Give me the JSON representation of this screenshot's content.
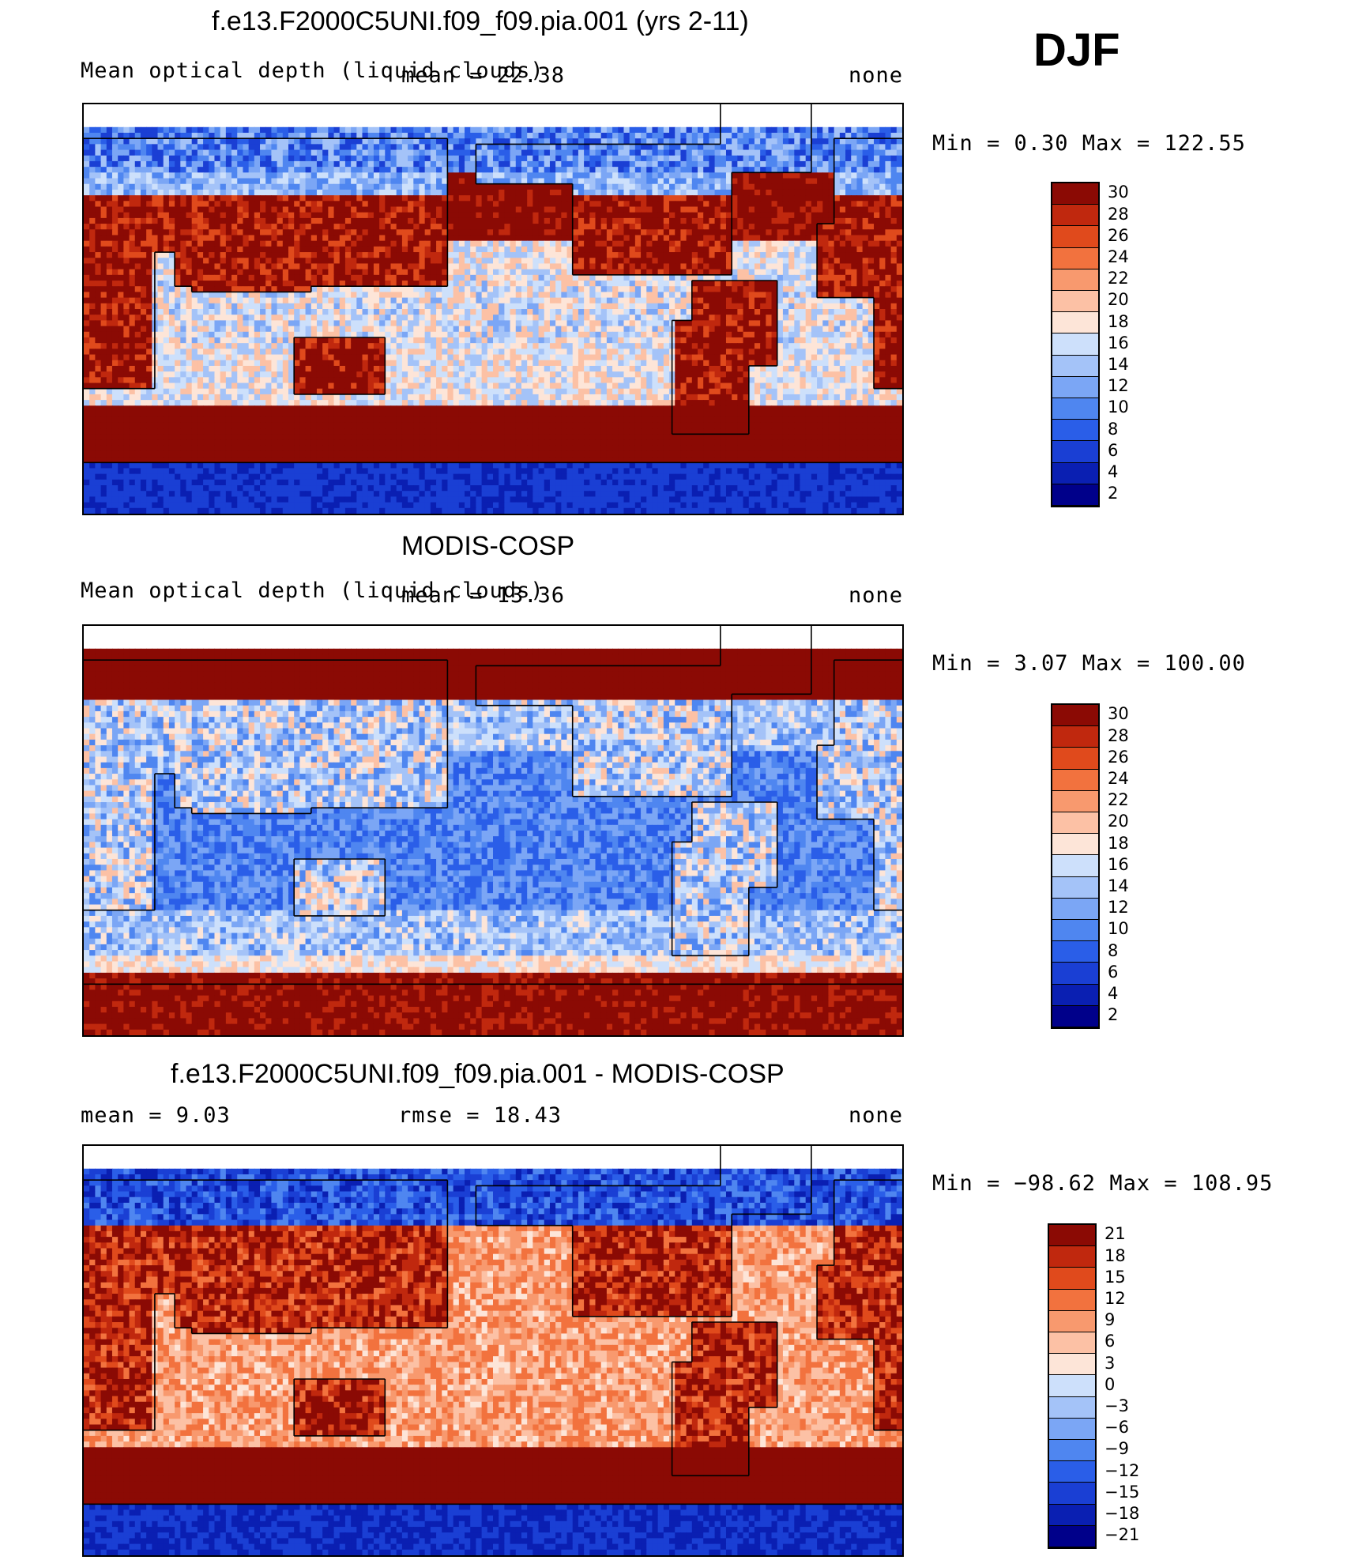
{
  "season": "DJF",
  "colors": {
    "levels_abs": [
      "#00008a",
      "#0a1fb2",
      "#1a3fd4",
      "#2a5ee8",
      "#4f86f0",
      "#7ba6f5",
      "#a4c3f8",
      "#cde0fb",
      "#fde5d8",
      "#fcc1a5",
      "#f8996e",
      "#f2723e",
      "#e04a1c",
      "#c0280e",
      "#8b0a04"
    ],
    "levels_diff": [
      "#00008a",
      "#0a1fb2",
      "#1a3fd4",
      "#2a5ee8",
      "#4f86f0",
      "#7ba6f5",
      "#a4c3f8",
      "#cde0fb",
      "#fde5d8",
      "#fcc1a5",
      "#f8996e",
      "#f2723e",
      "#e04a1c",
      "#c0280e",
      "#8b0a04"
    ]
  },
  "panels": [
    {
      "title": "f.e13.F2000C5UNI.f09_f09.pia.001 (yrs 2-11)",
      "subtitle_left": "Mean optical depth (liquid clouds)",
      "mean_label": "mean = 22.38",
      "units": "none",
      "minmax": "Min =    0.30 Max = 122.55",
      "colorbar_labels": [
        "30",
        "28",
        "26",
        "24",
        "22",
        "20",
        "18",
        "16",
        "14",
        "12",
        "10",
        "8",
        "6",
        "4",
        "2"
      ]
    },
    {
      "title": "MODIS-COSP",
      "subtitle_left": "Mean optical depth (liquid clouds)",
      "mean_label": "mean = 13.36",
      "units": "none",
      "minmax": "Min =    3.07 Max = 100.00",
      "colorbar_labels": [
        "30",
        "28",
        "26",
        "24",
        "22",
        "20",
        "18",
        "16",
        "14",
        "12",
        "10",
        "8",
        "6",
        "4",
        "2"
      ]
    },
    {
      "title": "f.e13.F2000C5UNI.f09_f09.pia.001 - MODIS-COSP",
      "mean_left": "mean =    9.03",
      "rmse": "rmse =   18.43",
      "units": "none",
      "minmax": "Min = −98.62 Max = 108.95",
      "colorbar_labels": [
        "21",
        "18",
        "15",
        "12",
        "9",
        "6",
        "3",
        "0",
        "−3",
        "−6",
        "−9",
        "−12",
        "−15",
        "−18",
        "−21"
      ]
    }
  ],
  "chart_data": [
    {
      "type": "heatmap",
      "title": "f.e13.F2000C5UNI.f09_f09.pia.001 (yrs 2-11)",
      "variable": "Mean optical depth (liquid clouds)",
      "mean": 22.38,
      "min": 0.3,
      "max": 122.55,
      "units": "none",
      "levels": [
        2,
        4,
        6,
        8,
        10,
        12,
        14,
        16,
        18,
        20,
        22,
        24,
        26,
        28,
        30
      ]
    },
    {
      "type": "heatmap",
      "title": "MODIS-COSP",
      "variable": "Mean optical depth (liquid clouds)",
      "mean": 13.36,
      "min": 3.07,
      "max": 100.0,
      "units": "none",
      "levels": [
        2,
        4,
        6,
        8,
        10,
        12,
        14,
        16,
        18,
        20,
        22,
        24,
        26,
        28,
        30
      ]
    },
    {
      "type": "heatmap",
      "title": "f.e13.F2000C5UNI.f09_f09.pia.001 - MODIS-COSP",
      "variable": "difference",
      "mean": 9.03,
      "rmse": 18.43,
      "min": -98.62,
      "max": 108.95,
      "units": "none",
      "levels": [
        -21,
        -18,
        -15,
        -12,
        -9,
        -6,
        -3,
        0,
        3,
        6,
        9,
        12,
        15,
        18,
        21
      ]
    }
  ]
}
